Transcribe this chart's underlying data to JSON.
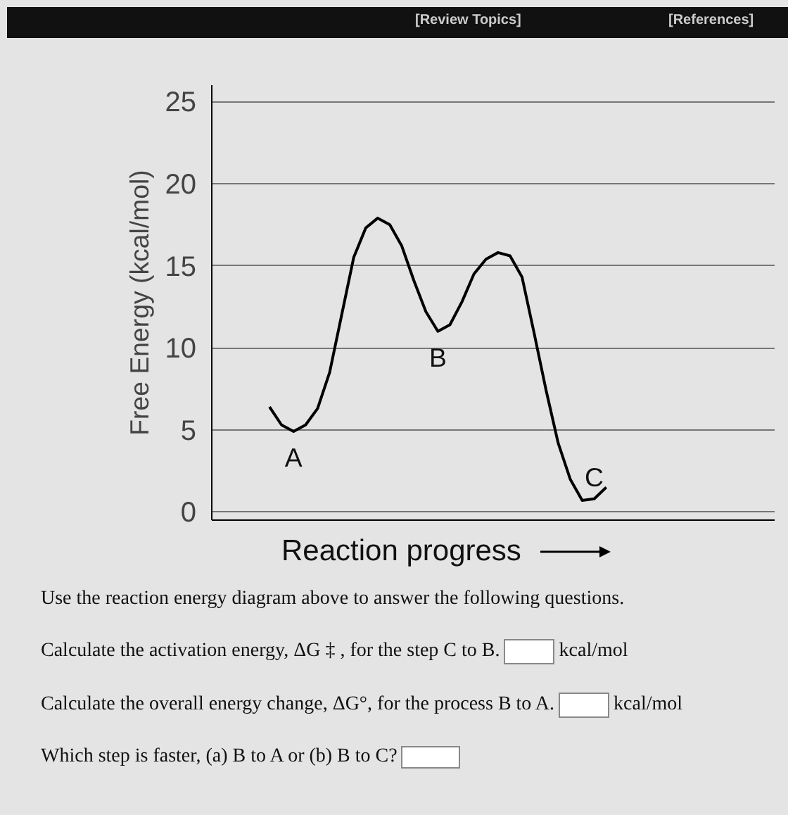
{
  "chart_data": {
    "type": "line",
    "ylabel": "Free Energy (kcal/mol)",
    "xlabel": "Reaction progress",
    "categories": [
      null,
      null,
      null,
      null,
      null,
      null,
      null,
      null,
      null,
      null,
      null,
      null,
      null,
      null,
      null,
      null,
      null,
      null,
      null,
      null,
      null,
      null,
      null,
      null,
      null,
      null,
      null,
      null,
      null
    ],
    "series": [
      {
        "color": "#000000",
        "values": [
          6.4,
          5.3,
          4.9,
          5.3,
          6.3,
          8.5,
          12.0,
          15.5,
          17.3,
          17.9,
          17.5,
          16.2,
          14.1,
          12.2,
          11.0,
          11.4,
          12.8,
          14.5,
          15.4,
          15.8,
          15.6,
          14.3,
          10.9,
          7.4,
          4.2,
          2.0,
          0.7,
          0.8,
          1.5
        ]
      }
    ],
    "ylim": [
      -0.5,
      26
    ],
    "yticks": [
      0,
      5,
      10,
      15,
      20,
      25
    ],
    "grid": "y",
    "marker": "none",
    "line_style": "solid",
    "annotations": [
      "A",
      "B",
      "C",
      "[Review Topics]",
      "[References]",
      "Use the reaction energy diagram above to answer the following questions.",
      "Calculate the activation energy, ΔG ‡ , for the step C to B.",
      "kcal/mol",
      "Calculate the overall energy change, ΔG°, for the process B to A.",
      "kcal/mol",
      "Which step is faster, (a) B to A or (b) B to C?"
    ]
  }
}
